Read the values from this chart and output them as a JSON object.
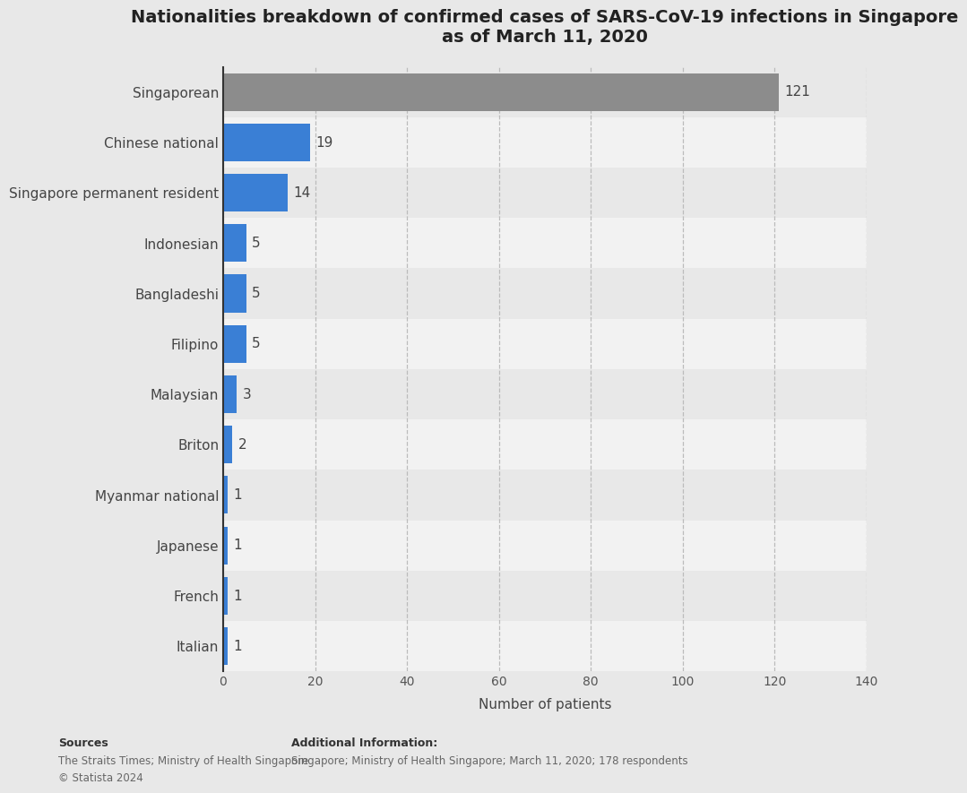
{
  "title": "Nationalities breakdown of confirmed cases of SARS-CoV-19 infections in Singapore\nas of March 11, 2020",
  "categories": [
    "Singaporean",
    "Chinese national",
    "Singapore permanent resident",
    "Indonesian",
    "Bangladeshi",
    "Filipino",
    "Malaysian",
    "Briton",
    "Myanmar national",
    "Japanese",
    "French",
    "Italian"
  ],
  "values": [
    121,
    19,
    14,
    5,
    5,
    5,
    3,
    2,
    1,
    1,
    1,
    1
  ],
  "bar_colors": [
    "#8c8c8c",
    "#3a7fd5",
    "#3a7fd5",
    "#3a7fd5",
    "#3a7fd5",
    "#3a7fd5",
    "#3a7fd5",
    "#3a7fd5",
    "#3a7fd5",
    "#3a7fd5",
    "#3a7fd5",
    "#3a7fd5"
  ],
  "row_bg_colors": [
    "#e8e8e8",
    "#f2f2f2",
    "#e8e8e8",
    "#f2f2f2",
    "#e8e8e8",
    "#f2f2f2",
    "#e8e8e8",
    "#f2f2f2",
    "#e8e8e8",
    "#f2f2f2",
    "#e8e8e8",
    "#f2f2f2"
  ],
  "xlabel": "Number of patients",
  "xlim": [
    0,
    140
  ],
  "xticks": [
    0,
    20,
    40,
    60,
    80,
    100,
    120,
    140
  ],
  "background_color": "#e8e8e8",
  "title_fontsize": 14,
  "label_fontsize": 11,
  "value_label_fontsize": 11,
  "xlabel_fontsize": 11,
  "sources_bold": "Sources",
  "sources_text": "The Straits Times; Ministry of Health Singapore\n© Statista 2024",
  "additional_info_bold": "Additional Information:",
  "additional_info_text": "Singapore; Ministry of Health Singapore; March 11, 2020; 178 respondents",
  "grid_color": "#bbbbbb",
  "bar_height": 0.75,
  "spine_color": "#333333"
}
